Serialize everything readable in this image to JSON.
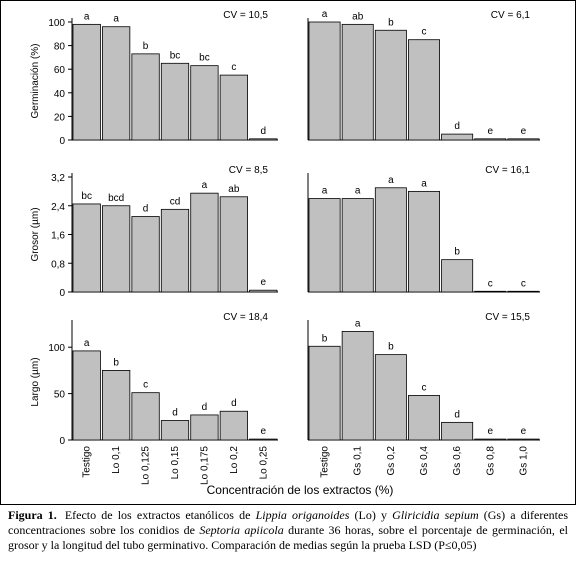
{
  "chart_data": [
    {
      "type": "bar",
      "y_label": "Germinación (%)",
      "cv_label": "CV = 10,5",
      "color": "#c0c0c0",
      "values": [
        98,
        96,
        73,
        65,
        63,
        55,
        1
      ],
      "letters": [
        "a",
        "a",
        "b",
        "bc",
        "bc",
        "c",
        "d"
      ],
      "ylim": [
        0,
        100
      ],
      "yticks": [
        0,
        20,
        40,
        60,
        80,
        100
      ]
    },
    {
      "type": "bar",
      "cv_label": "CV = 6,1",
      "color": "#c0c0c0",
      "values": [
        100,
        98,
        93,
        85,
        5,
        1,
        1
      ],
      "letters": [
        "a",
        "ab",
        "b",
        "c",
        "d",
        "e",
        "e"
      ],
      "ylim": [
        0,
        100
      ]
    },
    {
      "type": "bar",
      "y_label": "Grosor (µm)",
      "cv_label": "CV = 8,5",
      "color": "#c0c0c0",
      "values": [
        2.45,
        2.4,
        2.1,
        2.3,
        2.75,
        2.65,
        0.05
      ],
      "letters": [
        "bc",
        "bcd",
        "d",
        "cd",
        "a",
        "ab",
        "e"
      ],
      "ylim": [
        0,
        3.2
      ],
      "yticks": [
        0,
        {
          "value": 0.8,
          "label": "0,8"
        },
        {
          "value": 1.6,
          "label": "1,6"
        },
        {
          "value": 2.4,
          "label": "2,4"
        },
        {
          "value": 3.2,
          "label": "3,2"
        }
      ]
    },
    {
      "type": "bar",
      "cv_label": "CV = 16,1",
      "color": "#c0c0c0",
      "values": [
        2.6,
        2.6,
        2.9,
        2.8,
        0.9,
        0.02,
        0.02
      ],
      "letters": [
        "a",
        "a",
        "a",
        "a",
        "b",
        "c",
        "c"
      ],
      "ylim": [
        0,
        3.2
      ]
    },
    {
      "type": "bar",
      "y_label": "Largo (µm)",
      "cv_label": "CV = 18,4",
      "color": "#c0c0c0",
      "categories": [
        "Testigo",
        "Lo 0,1",
        "Lo 0,125",
        "Lo 0,15",
        "Lo 0,175",
        "Lo 0,2",
        "Lo 0,25"
      ],
      "values": [
        96,
        75,
        51,
        21,
        27,
        31,
        1
      ],
      "letters": [
        "a",
        "b",
        "c",
        "d",
        "d",
        "d",
        "e"
      ],
      "ylim": [
        0,
        125
      ],
      "yticks": [
        0,
        50,
        100
      ]
    },
    {
      "type": "bar",
      "cv_label": "CV = 15,5",
      "color": "#c0c0c0",
      "categories": [
        "Testigo",
        "Gs 0,1",
        "Gs 0,2",
        "Gs 0,4",
        "Gs 0,6",
        "Gs 0,8",
        "Gs 1,0"
      ],
      "values": [
        101,
        117,
        92,
        48,
        19,
        1,
        1
      ],
      "letters": [
        "b",
        "a",
        "b",
        "c",
        "d",
        "e",
        "e"
      ],
      "ylim": [
        0,
        125
      ]
    }
  ],
  "x_label": "Concentración de los extractos (%)",
  "caption": {
    "label": "Figura 1.",
    "segments": [
      {
        "text": "Efecto de los extractos etanólicos de ",
        "italic": false
      },
      {
        "text": "Lippia origanoides",
        "italic": true
      },
      {
        "text": " (Lo) y ",
        "italic": false
      },
      {
        "text": "Gliricidia sepium",
        "italic": true
      },
      {
        "text": " (Gs) a diferentes concentraciones sobre los conidios de ",
        "italic": false
      },
      {
        "text": "Septoria apiicola",
        "italic": true
      },
      {
        "text": " durante 36 horas, sobre el porcentaje de germinación, el grosor y la longitud del tubo germinativo. Comparación de medias según la prueba LSD (P≤0,05)",
        "italic": false
      }
    ]
  }
}
